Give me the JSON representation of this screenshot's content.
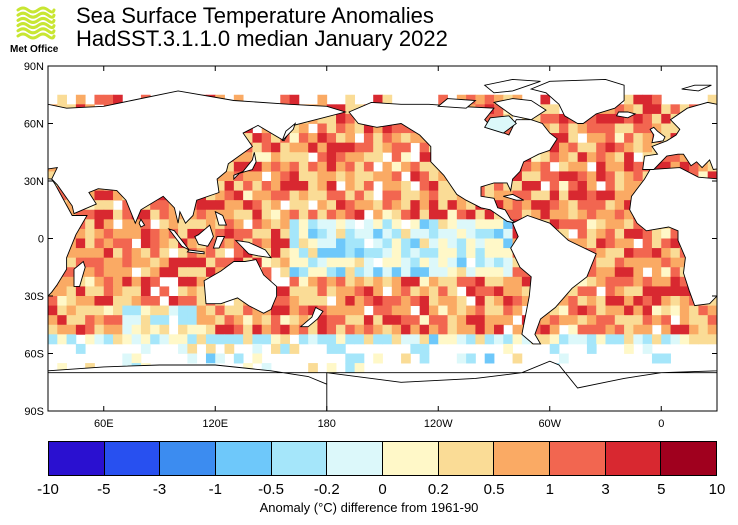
{
  "logo": {
    "name": "Met Office",
    "wave_color": "#c8e632"
  },
  "title": {
    "line1": "Sea Surface Temperature Anomalies",
    "line2": "HadSST.3.1.1.0 median January 2022"
  },
  "map": {
    "lat_ticks": [
      "90N",
      "60N",
      "30N",
      "0",
      "30S",
      "60S",
      "90S"
    ],
    "lon_ticks": [
      "60E",
      "120E",
      "180",
      "120W",
      "60W",
      "0"
    ],
    "land_color": "#ffffff",
    "ocean_nodata_color": "#ffffff",
    "coastline_color": "#000000"
  },
  "colorbar": {
    "colors": [
      "#2a10d0",
      "#2850f0",
      "#3c8cf0",
      "#6ec8fa",
      "#a5e6fa",
      "#dcf8fa",
      "#fff8c8",
      "#fadc96",
      "#faaa64",
      "#f26650",
      "#d82830",
      "#a0001e"
    ],
    "labels": [
      "-10",
      "-5",
      "-3",
      "-1",
      "-0.5",
      "-0.2",
      "0",
      "0.2",
      "0.5",
      "1",
      "3",
      "5",
      "10"
    ],
    "caption": "Anomaly (°C) difference from 1961-90"
  }
}
